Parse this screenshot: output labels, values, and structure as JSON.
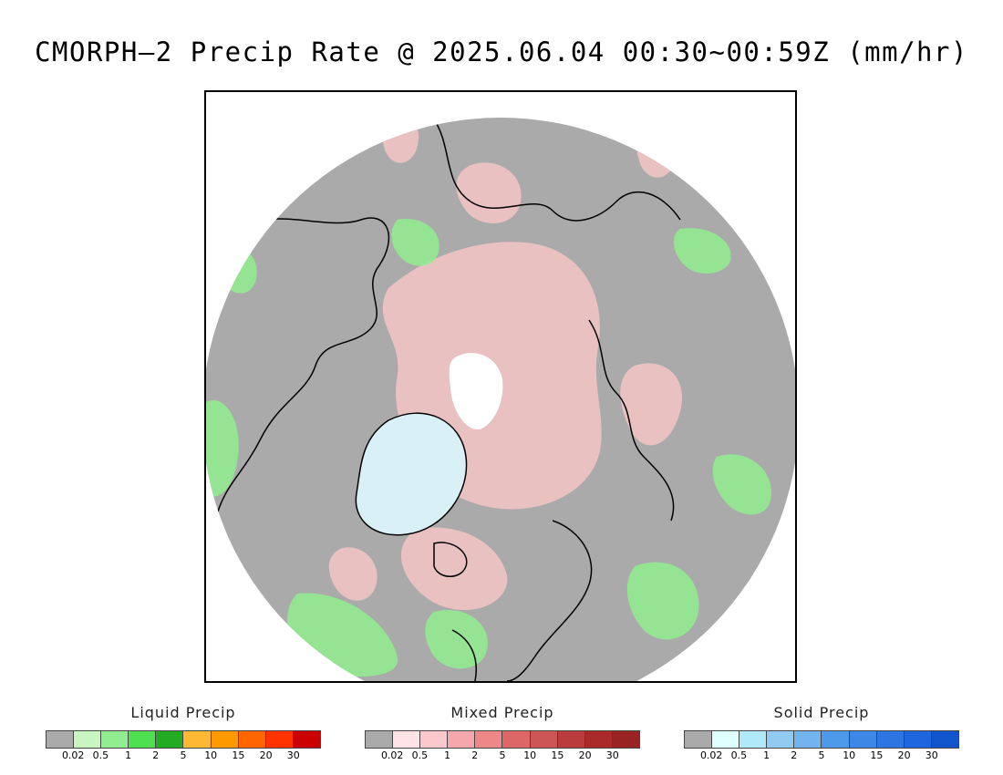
{
  "title": "CMORPH–2 Precip Rate @ 2025.06.04 00:30~00:59Z (mm/hr)",
  "map": {
    "projection": "north-polar-stereographic",
    "background_color": "#aaaaaa",
    "regions": [
      {
        "name": "north-pole-hole",
        "color": "#ffffff"
      },
      {
        "name": "greenland-ice",
        "color": "#d9f0f6"
      },
      {
        "name": "arctic-mixed-precip",
        "color": "#f5c6c6"
      },
      {
        "name": "liquid-precip-areas",
        "color": "#90ee90"
      }
    ]
  },
  "legends": [
    {
      "title": "Liquid Precip",
      "colors": [
        "#aaaaaa",
        "#c8f5c0",
        "#90ee90",
        "#4fe04f",
        "#22aa22",
        "#ffb833",
        "#ff9900",
        "#ff6600",
        "#ff3300",
        "#cc0000"
      ],
      "ticks": [
        "0.02",
        "0.5",
        "1",
        "2",
        "5",
        "10",
        "15",
        "20",
        "30"
      ]
    },
    {
      "title": "Mixed Precip",
      "colors": [
        "#aaaaaa",
        "#ffe3e6",
        "#fcc8cc",
        "#f5a8ac",
        "#ee8888",
        "#dd6666",
        "#cc5555",
        "#bb3c3c",
        "#aa2a2a",
        "#992222"
      ],
      "ticks": [
        "0.02",
        "0.5",
        "1",
        "2",
        "5",
        "10",
        "15",
        "20",
        "30"
      ]
    },
    {
      "title": "Solid Precip",
      "colors": [
        "#aaaaaa",
        "#e0ffff",
        "#b0eaf8",
        "#90ccf2",
        "#72b4ee",
        "#4d9aea",
        "#3d88e6",
        "#2d76e2",
        "#1d66dd",
        "#1155cc"
      ],
      "ticks": [
        "0.02",
        "0.5",
        "1",
        "2",
        "5",
        "10",
        "15",
        "20",
        "30"
      ]
    }
  ]
}
